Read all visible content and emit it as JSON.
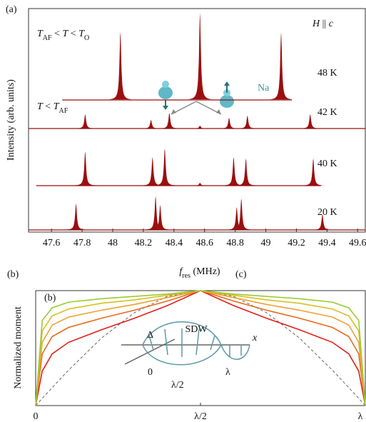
{
  "chart_data": [
    {
      "type": "spectra",
      "panel": "(a)",
      "xlabel": [
        {
          "text": "f",
          "italic": true
        },
        {
          "text": "res",
          "sub": true
        },
        {
          "text": " (MHz)"
        }
      ],
      "ylabel": "Intensity (arb. units)",
      "xlim": [
        47.45,
        49.65
      ],
      "xticks": [
        47.6,
        47.8,
        48,
        48.2,
        48.4,
        48.6,
        48.8,
        49,
        49.2,
        49.4,
        49.6
      ],
      "color": "#9b0f0f",
      "annotations": {
        "top": [
          {
            "text": "T",
            "italic": true
          },
          {
            "text": "AF",
            "sub": true
          },
          {
            "text": " < "
          },
          {
            "text": "T",
            "italic": true
          },
          {
            "text": " < "
          },
          {
            "text": "T",
            "italic": true
          },
          {
            "text": "O",
            "sub": true
          }
        ],
        "bottom": [
          {
            "text": "T",
            "italic": true
          },
          {
            "text": " < "
          },
          {
            "text": "T",
            "italic": true
          },
          {
            "text": "AF",
            "sub": true
          }
        ],
        "field": [
          {
            "text": "H",
            "italic": true
          },
          {
            "text": " || "
          },
          {
            "text": "c",
            "italic": true
          }
        ],
        "atom": "Na"
      },
      "series": [
        {
          "name": "48 K",
          "range": [
            47.67,
            49.17
          ],
          "x": [
            48.05,
            48.57,
            49.1
          ],
          "values": [
            95,
            122,
            95
          ]
        },
        {
          "name": "42 K",
          "range": [
            47.45,
            49.65
          ],
          "x": [
            47.82,
            48.25,
            48.37,
            48.57,
            48.76,
            48.88,
            49.29
          ],
          "values": [
            20,
            12,
            22,
            4,
            15,
            18,
            20
          ]
        },
        {
          "name": "40 K",
          "range": [
            47.5,
            49.36
          ],
          "x": [
            47.82,
            48.26,
            48.34,
            48.57,
            48.79,
            48.87,
            49.31
          ],
          "values": [
            48,
            40,
            52,
            4,
            40,
            38,
            38
          ]
        },
        {
          "name": "20 K",
          "range": [
            47.45,
            49.65
          ],
          "x": [
            47.76,
            48.28,
            48.31,
            48.81,
            48.84,
            49.37
          ],
          "values": [
            37,
            47,
            35,
            32,
            44,
            22
          ]
        }
      ]
    },
    {
      "type": "line",
      "panels": [
        "(b)",
        "(c)"
      ],
      "inner_panel": "(b)",
      "ylabel": "Normalized moment",
      "xlim": [
        0,
        1
      ],
      "ylim": [
        0,
        1
      ],
      "xticks": [
        {
          "value": 0,
          "label": "0"
        },
        {
          "value": 0.5,
          "label": "λ/2"
        },
        {
          "value": 1,
          "label": "λ"
        }
      ],
      "x": [
        0,
        0.02,
        0.05,
        0.1,
        0.2,
        0.3,
        0.4,
        0.5,
        0.6,
        0.7,
        0.8,
        0.9,
        0.95,
        0.98,
        1
      ],
      "series": [
        {
          "color": "#666666",
          "dashed": true,
          "values": [
            0,
            0.063,
            0.156,
            0.309,
            0.588,
            0.809,
            0.951,
            1,
            0.951,
            0.809,
            0.588,
            0.309,
            0.156,
            0.063,
            0
          ]
        },
        {
          "color": "#e0201c",
          "values": [
            0,
            0.3,
            0.45,
            0.55,
            0.66,
            0.76,
            0.87,
            1,
            0.87,
            0.76,
            0.66,
            0.55,
            0.45,
            0.3,
            0
          ]
        },
        {
          "color": "#e86a1c",
          "values": [
            0,
            0.45,
            0.6,
            0.68,
            0.76,
            0.83,
            0.91,
            1,
            0.91,
            0.83,
            0.76,
            0.68,
            0.6,
            0.45,
            0
          ]
        },
        {
          "color": "#f0a030",
          "values": [
            0,
            0.55,
            0.7,
            0.77,
            0.83,
            0.88,
            0.94,
            1,
            0.94,
            0.88,
            0.83,
            0.77,
            0.7,
            0.55,
            0
          ]
        },
        {
          "color": "#d8c020",
          "values": [
            0,
            0.65,
            0.78,
            0.84,
            0.89,
            0.92,
            0.96,
            1,
            0.96,
            0.92,
            0.89,
            0.84,
            0.78,
            0.65,
            0
          ]
        },
        {
          "color": "#98cc30",
          "values": [
            0,
            0.74,
            0.85,
            0.9,
            0.93,
            0.95,
            0.97,
            1,
            0.97,
            0.95,
            0.93,
            0.9,
            0.85,
            0.74,
            0
          ]
        }
      ],
      "inset": {
        "title": "SDW",
        "delta": "Δ",
        "zero": "0",
        "half": "λ/2",
        "lambda": "λ",
        "axis": "x"
      }
    }
  ]
}
